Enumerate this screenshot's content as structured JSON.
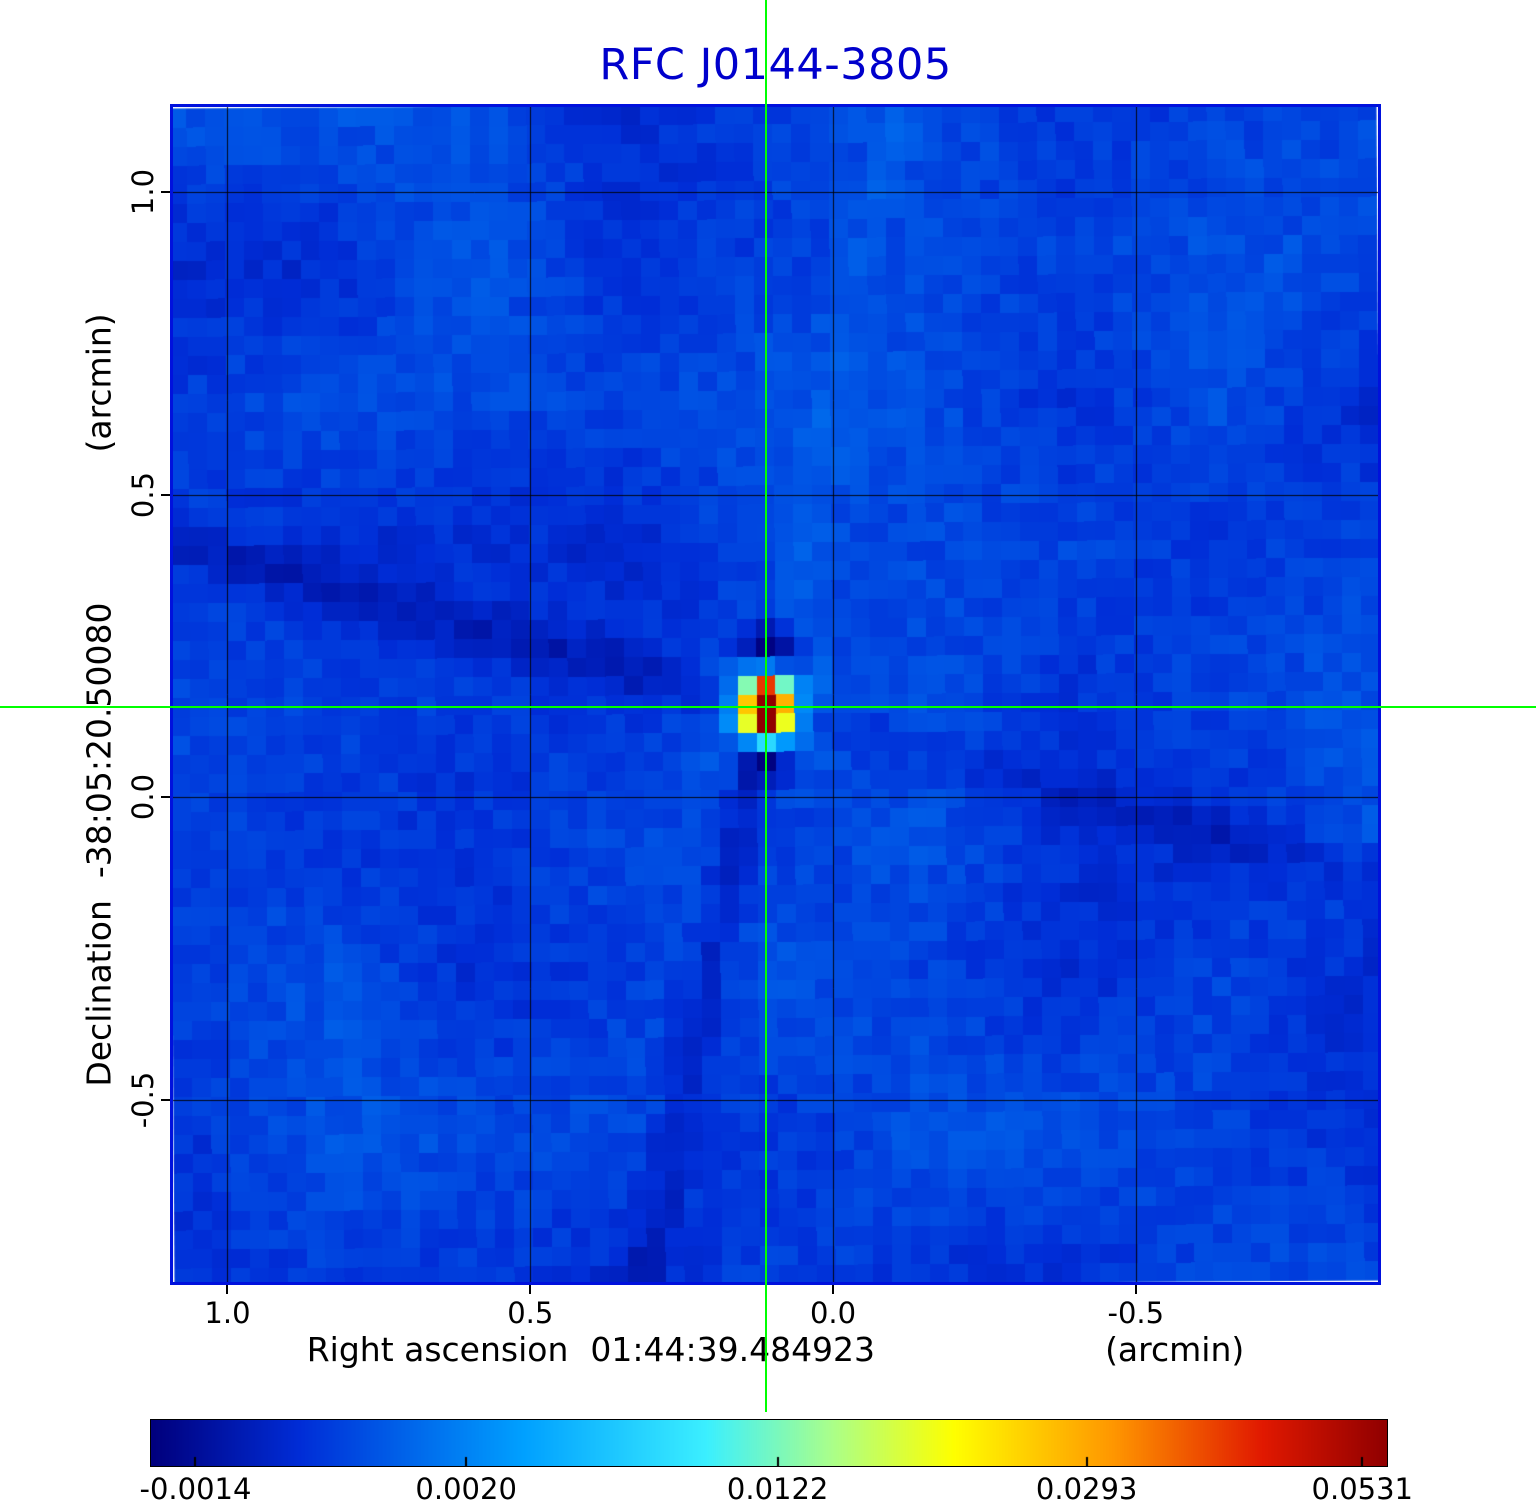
{
  "title": "RFC J0144-3805",
  "colors": {
    "title": "#0000cc",
    "frame": "#0011dd",
    "crosshair": "#00ff00",
    "grid": "#000000",
    "text": "#000000"
  },
  "axes": {
    "x": {
      "label": "Right ascension",
      "coordinate": "01:44:39.484923",
      "unit": "(arcmin)",
      "range": [
        1.09,
        -0.9
      ],
      "ticks": [
        {
          "value": 1.0,
          "label": "1.0"
        },
        {
          "value": 0.5,
          "label": "0.5"
        },
        {
          "value": 0.0,
          "label": "0.0"
        },
        {
          "value": -0.5,
          "label": "-0.5"
        }
      ]
    },
    "y": {
      "label": "Declination",
      "coordinate": "-38:05:20.50080",
      "unit": "(arcmin)",
      "range": [
        1.14,
        -0.8
      ],
      "ticks": [
        {
          "value": 1.0,
          "label": "1.0"
        },
        {
          "value": 0.5,
          "label": "0.5"
        },
        {
          "value": 0.0,
          "label": "0.0"
        },
        {
          "value": -0.5,
          "label": "-0.5"
        }
      ]
    }
  },
  "source": {
    "x_arcmin": 0.111,
    "y_arcmin": 0.149
  },
  "colorbar": {
    "ticks": [
      {
        "label": "-0.0014",
        "pos": 0.036
      },
      {
        "label": "0.0020",
        "pos": 0.255
      },
      {
        "label": "0.0122",
        "pos": 0.507
      },
      {
        "label": "0.0293",
        "pos": 0.757
      },
      {
        "label": "0.0531",
        "pos": 0.98
      }
    ]
  },
  "colormap_stops": [
    [
      0.0,
      0,
      0,
      125
    ],
    [
      0.12,
      0,
      45,
      215
    ],
    [
      0.3,
      0,
      160,
      255
    ],
    [
      0.45,
      60,
      240,
      255
    ],
    [
      0.55,
      170,
      255,
      140
    ],
    [
      0.65,
      255,
      255,
      0
    ],
    [
      0.78,
      255,
      150,
      0
    ],
    [
      0.9,
      225,
      25,
      0
    ],
    [
      1.0,
      145,
      0,
      0
    ]
  ],
  "chart_data": {
    "type": "heatmap",
    "title": "RFC J0144-3805",
    "xlabel": "Right ascension 01:44:39.484923 (arcmin)",
    "ylabel": "Declination -38:05:20.50080 (arcmin)",
    "x_range_arcmin": [
      1.09,
      -0.9
    ],
    "y_range_arcmin": [
      1.14,
      -0.8
    ],
    "x_ticks_arcmin": [
      1.0,
      0.5,
      0.0,
      -0.5
    ],
    "y_ticks_arcmin": [
      1.0,
      0.5,
      0.0,
      -0.5
    ],
    "grid": true,
    "colormap": "jet",
    "intensity_scale_ticks": [
      -0.0014,
      0.002,
      0.0122,
      0.0293,
      0.0531
    ],
    "intensity_min": -0.0014,
    "intensity_max": 0.0531,
    "background_level_approx": 0.002,
    "peak": {
      "x_arcmin": 0.111,
      "y_arcmin": 0.149,
      "peak_value": 0.0531
    },
    "crosshair_arcmin": [
      0.111,
      0.149
    ],
    "artifacts": "two diagonal sidelobe stripes crossing at the peak (one near-horizontal sloping down to the right, one near-vertical tilting left going down); dark negative bowls directly above and below the compact source"
  }
}
